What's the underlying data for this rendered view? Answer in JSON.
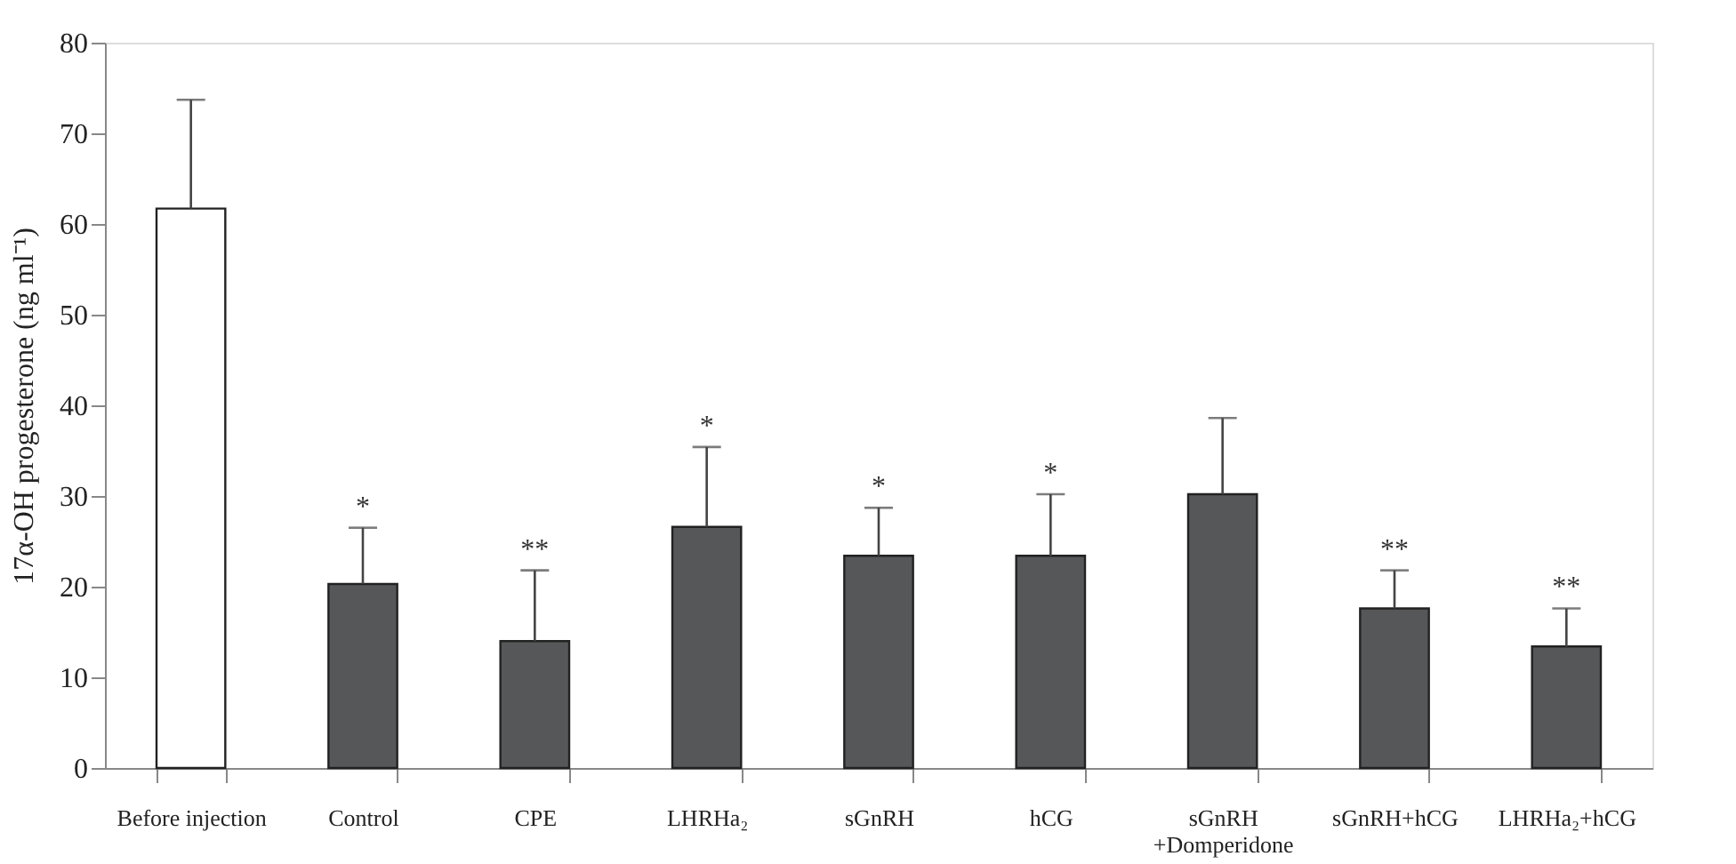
{
  "chart_data": {
    "type": "bar",
    "ylabel": "17α-OH progesterone (ng ml⁻¹)",
    "categories": [
      "Before injection",
      "Control",
      "CPE",
      "LHRHa₂",
      "sGnRH",
      "hCG",
      "sGnRH\n+Domperidone",
      "sGnRH+hCG",
      "LHRHa₂+hCG"
    ],
    "values": [
      61.7,
      20.3,
      14.0,
      26.6,
      23.4,
      23.4,
      30.2,
      17.6,
      13.4
    ],
    "errors": [
      [
        61.7,
        73.7
      ],
      [
        20.3,
        26.5
      ],
      [
        14.0,
        21.8
      ],
      [
        26.6,
        35.4
      ],
      [
        23.4,
        28.7
      ],
      [
        23.4,
        30.2
      ],
      [
        30.2,
        38.6
      ],
      [
        17.6,
        21.8
      ],
      [
        13.4,
        17.6
      ]
    ],
    "colors": [
      "#ffffff",
      "#555759",
      "#555759",
      "#555759",
      "#555759",
      "#555759",
      "#555759",
      "#555759",
      "#555759"
    ],
    "ylim": [
      0,
      80
    ],
    "yticks": [
      0,
      10,
      20,
      30,
      40,
      50,
      60,
      70,
      80
    ],
    "grid": false,
    "value_labels": [
      null,
      "*",
      "**",
      "*",
      "*",
      "*",
      null,
      "**",
      "**"
    ]
  }
}
